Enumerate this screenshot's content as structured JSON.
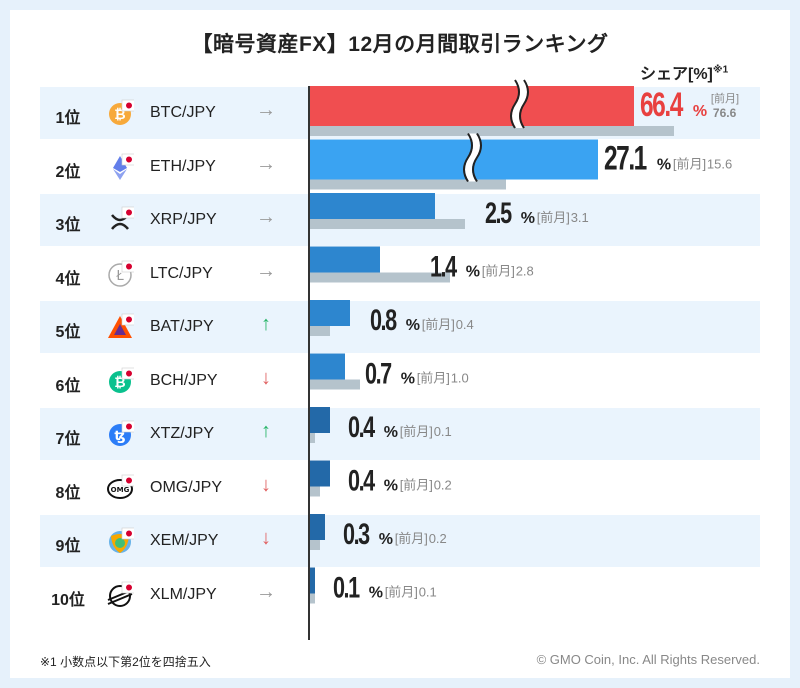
{
  "title": "【暗号資産FX】12月の月間取引ランキング",
  "share_label": "シェア[%]",
  "share_note_mark": "※1",
  "footnote": "※1  小数点以下第2位を四捨五入",
  "copyright": "© GMO Coin, Inc. All Rights Reserved.",
  "colors": {
    "top_bar": "#f04e50",
    "top_value": "#e8403f",
    "bar_light": "#3aa3f2",
    "bar_mid": "#2d86cf",
    "bar_dark": "#2369a8",
    "prev_bar": "#b5c3cc",
    "up_arrow": "#25b466",
    "down_arrow": "#e06060",
    "flat_arrow": "#999999",
    "row_bg": "#eaf4fd"
  },
  "chart_data": {
    "type": "bar",
    "orientation": "horizontal",
    "title": "【暗号資産FX】12月の月間取引ランキング",
    "xlabel": "シェア[%]",
    "prev_label": "[前月]",
    "unit": "%",
    "axis_break_note": "bars for 1位 and 2位 are truncated with break marks",
    "series": [
      {
        "name": "12月",
        "values": [
          66.4,
          27.1,
          2.5,
          1.4,
          0.8,
          0.7,
          0.4,
          0.4,
          0.3,
          0.1
        ]
      },
      {
        "name": "前月",
        "values": [
          76.6,
          15.6,
          3.1,
          2.8,
          0.4,
          1.0,
          0.1,
          0.2,
          0.2,
          0.1
        ]
      }
    ],
    "rows": [
      {
        "rank": "1位",
        "pair": "BTC/JPY",
        "icon": "bitcoin-icon",
        "trend": "flat",
        "value": "66.4",
        "prev": "76.6"
      },
      {
        "rank": "2位",
        "pair": "ETH/JPY",
        "icon": "ethereum-icon",
        "trend": "flat",
        "value": "27.1",
        "prev": "15.6"
      },
      {
        "rank": "3位",
        "pair": "XRP/JPY",
        "icon": "ripple-icon",
        "trend": "flat",
        "value": "2.5",
        "prev": "3.1"
      },
      {
        "rank": "4位",
        "pair": "LTC/JPY",
        "icon": "litecoin-icon",
        "trend": "flat",
        "value": "1.4",
        "prev": "2.8"
      },
      {
        "rank": "5位",
        "pair": "BAT/JPY",
        "icon": "bat-icon",
        "trend": "up",
        "value": "0.8",
        "prev": "0.4"
      },
      {
        "rank": "6位",
        "pair": "BCH/JPY",
        "icon": "bitcoin-cash-icon",
        "trend": "down",
        "value": "0.7",
        "prev": "1.0"
      },
      {
        "rank": "7位",
        "pair": "XTZ/JPY",
        "icon": "tezos-icon",
        "trend": "up",
        "value": "0.4",
        "prev": "0.1"
      },
      {
        "rank": "8位",
        "pair": "OMG/JPY",
        "icon": "omg-icon",
        "trend": "down",
        "value": "0.4",
        "prev": "0.2"
      },
      {
        "rank": "9位",
        "pair": "XEM/JPY",
        "icon": "nem-icon",
        "trend": "down",
        "value": "0.3",
        "prev": "0.2"
      },
      {
        "rank": "10位",
        "pair": "XLM/JPY",
        "icon": "stellar-icon",
        "trend": "flat",
        "value": "0.1",
        "prev": "0.1"
      }
    ]
  }
}
